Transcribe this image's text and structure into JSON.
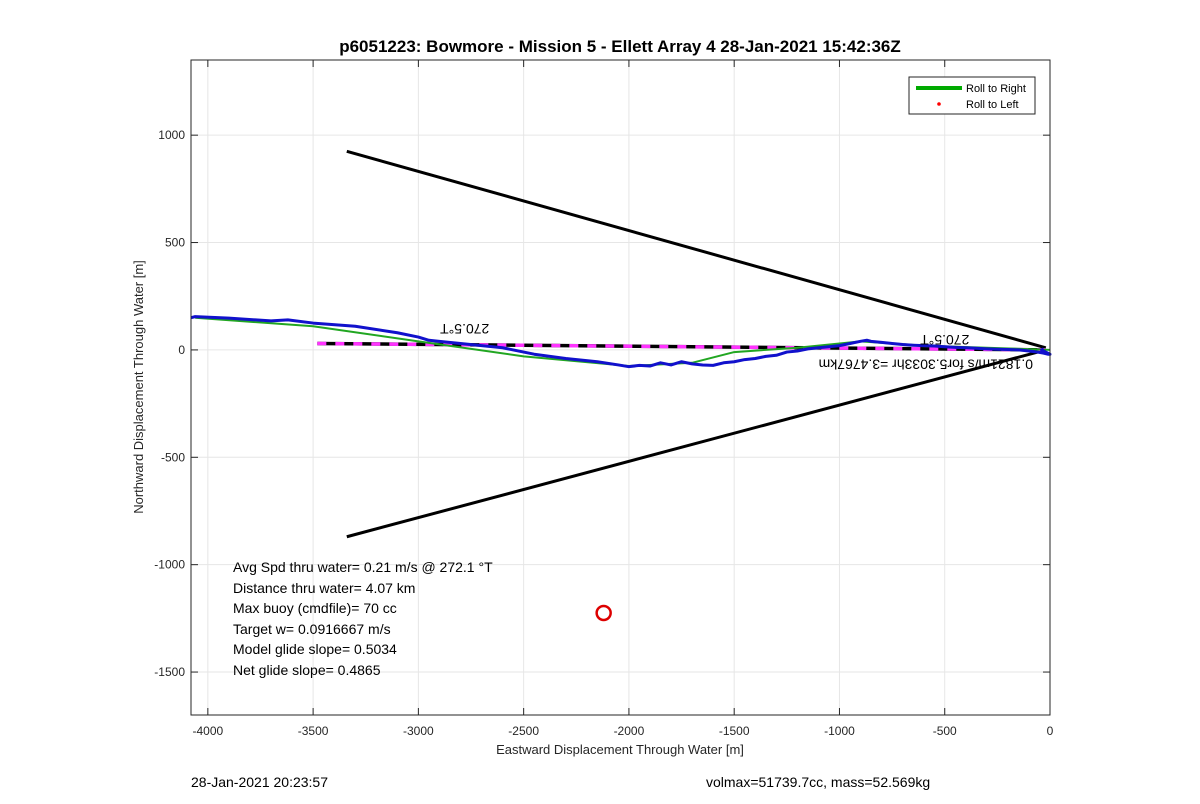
{
  "chart_data": {
    "type": "line",
    "title": "p6051223: Bowmore - Mission 5 - Ellett Array 4 28-Jan-2021 15:42:36Z",
    "xlabel": "Eastward Displacement Through Water [m]",
    "ylabel": "Northward Displacement Through Water [m]",
    "xlim": [
      -4080,
      0
    ],
    "ylim": [
      -1700,
      1350
    ],
    "xticks": [
      -4000,
      -3500,
      -3000,
      -2500,
      -2000,
      -1500,
      -1000,
      -500,
      0
    ],
    "yticks": [
      -1500,
      -1000,
      -500,
      0,
      500,
      1000
    ],
    "grid": true,
    "legend": {
      "placement": "top-right",
      "entries": [
        {
          "label": "Roll to Right",
          "color": "#00aa00",
          "style": "line"
        },
        {
          "label": "Roll to Left",
          "color": "#ff0000",
          "style": "dot"
        }
      ]
    },
    "series": [
      {
        "role": "green",
        "color": "#21a621",
        "width": 2,
        "x": [
          -4060,
          -3500,
          -3000,
          -2500,
          -2000,
          -1700,
          -1500,
          -1200,
          -900,
          -600,
          -300,
          0
        ],
        "y": [
          150,
          110,
          40,
          -30,
          -75,
          -60,
          -10,
          10,
          40,
          20,
          10,
          0
        ]
      },
      {
        "role": "blue",
        "color": "#1111cc",
        "width": 3,
        "x": [
          -4080,
          -4060,
          -3900,
          -3700,
          -3620,
          -3500,
          -3300,
          -3100,
          -3000,
          -2950,
          -2900,
          -2800,
          -2600,
          -2450,
          -2300,
          -2150,
          -2050,
          -2000,
          -1950,
          -1900,
          -1850,
          -1800,
          -1750,
          -1700,
          -1650,
          -1600,
          -1550,
          -1500,
          -1450,
          -1400,
          -1350,
          -1300,
          -1250,
          -1200,
          -1150,
          -1100,
          -1050,
          -1000,
          -950,
          -900,
          -870,
          -850,
          -800,
          -750,
          -700,
          -650,
          -600,
          -550,
          -500,
          -450,
          -400,
          -350,
          -300,
          -250,
          -200,
          -150,
          -100,
          -60,
          -30,
          -10,
          0,
          -20,
          -40,
          -30
        ],
        "y": [
          150,
          155,
          148,
          135,
          140,
          125,
          110,
          80,
          60,
          45,
          40,
          30,
          10,
          -20,
          -40,
          -55,
          -70,
          -78,
          -72,
          -75,
          -60,
          -70,
          -55,
          -65,
          -70,
          -72,
          -60,
          -55,
          -45,
          -40,
          -30,
          -25,
          -10,
          -5,
          5,
          10,
          15,
          20,
          30,
          40,
          45,
          40,
          35,
          30,
          25,
          22,
          20,
          18,
          15,
          12,
          10,
          8,
          5,
          3,
          2,
          0,
          -5,
          -10,
          -15,
          -20,
          -20,
          -10,
          0,
          5
        ]
      }
    ],
    "cone_lines": [
      {
        "x": [
          -3340,
          -20
        ],
        "y": [
          925,
          10
        ]
      },
      {
        "x": [
          -3340,
          -20
        ],
        "y": [
          -870,
          0
        ]
      }
    ],
    "dashed_line": {
      "x": [
        -3480,
        -20
      ],
      "y": [
        30,
        0
      ],
      "colors": [
        "#000000",
        "#ff33ff"
      ]
    },
    "marker": {
      "x": -2120,
      "y": -1225,
      "color": "#dd0000"
    },
    "annotations": [
      {
        "text": "270.5°T",
        "x": -2780,
        "y": 120,
        "rotate": 180
      },
      {
        "text": "270.5°T",
        "x": -500,
        "y": 70,
        "rotate": 180
      },
      {
        "text": "0.1821m/s for5.3033hr =3.4767km",
        "x": -590,
        "y": -45,
        "rotate": 180
      }
    ],
    "stats": [
      "Avg Spd thru water=  0.21 m/s @ 272.1 °T",
      "Distance thru water=  4.07 km",
      "Max buoy (cmdfile)= 70 cc",
      "Target w= 0.0916667 m/s",
      "Model glide slope= 0.5034",
      "Net glide slope= 0.4865"
    ]
  },
  "footer": {
    "left": "28-Jan-2021 20:23:57",
    "right": "volmax=51739.7cc, mass=52.569kg"
  }
}
